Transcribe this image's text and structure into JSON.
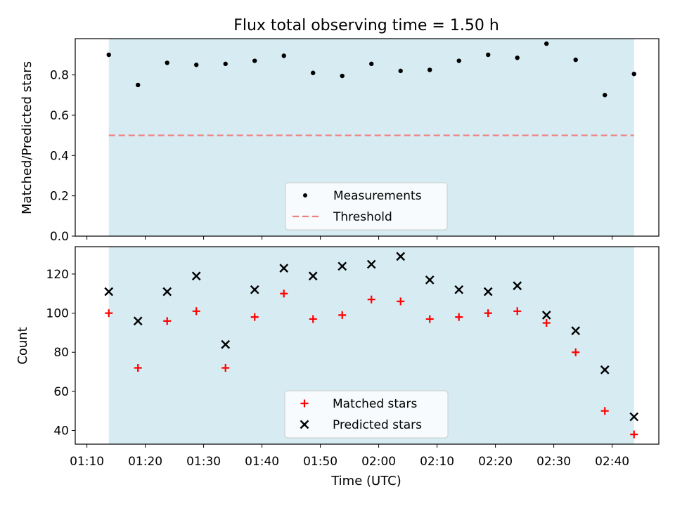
{
  "title": "Flux total observing time = 1.50 h",
  "xlabel": "Time (UTC)",
  "x_ticks": [
    "01:10",
    "01:20",
    "01:30",
    "01:40",
    "01:50",
    "02:00",
    "02:10",
    "02:20",
    "02:30",
    "02:40"
  ],
  "colors": {
    "shade": "#add8e6",
    "measurement": "#000000",
    "threshold": "#f08080",
    "matched": "#ff0000",
    "predicted": "#000000"
  },
  "chart_data": [
    {
      "type": "scatter",
      "ylabel": "Matched/Predicted stars",
      "xlim": [
        "01:08:00",
        "02:48:00"
      ],
      "ylim": [
        0,
        0.98
      ],
      "y_ticks": [
        "0.0",
        "0.2",
        "0.4",
        "0.6",
        "0.8"
      ],
      "shaded_span": [
        "01:13:45",
        "02:43:45"
      ],
      "threshold": 0.5,
      "x": [
        "01:13:45",
        "01:18:45",
        "01:23:45",
        "01:28:45",
        "01:33:45",
        "01:38:45",
        "01:43:45",
        "01:48:45",
        "01:53:45",
        "01:58:45",
        "02:03:45",
        "02:08:45",
        "02:13:45",
        "02:18:45",
        "02:23:45",
        "02:28:45",
        "02:33:45",
        "02:38:45",
        "02:43:45"
      ],
      "series": [
        {
          "name": "Measurements",
          "values": [
            0.9,
            0.75,
            0.86,
            0.85,
            0.855,
            0.87,
            0.895,
            0.81,
            0.795,
            0.855,
            0.82,
            0.825,
            0.87,
            0.9,
            0.885,
            0.955,
            0.875,
            0.7,
            0.805
          ]
        },
        {
          "name": "Threshold",
          "style": "dashed",
          "values": [
            0.5,
            0.5
          ]
        }
      ],
      "legend": "lower center"
    },
    {
      "type": "scatter",
      "ylabel": "Count",
      "xlim": [
        "01:08:00",
        "02:48:00"
      ],
      "ylim": [
        33,
        134
      ],
      "y_ticks": [
        "40",
        "60",
        "80",
        "100",
        "120"
      ],
      "shaded_span": [
        "01:13:45",
        "02:43:45"
      ],
      "x": [
        "01:13:45",
        "01:18:45",
        "01:23:45",
        "01:28:45",
        "01:33:45",
        "01:38:45",
        "01:43:45",
        "01:48:45",
        "01:53:45",
        "01:58:45",
        "02:03:45",
        "02:08:45",
        "02:13:45",
        "02:18:45",
        "02:23:45",
        "02:28:45",
        "02:33:45",
        "02:38:45",
        "02:43:45"
      ],
      "series": [
        {
          "name": "Matched stars",
          "marker": "+",
          "values": [
            100,
            72,
            96,
            101,
            72,
            98,
            110,
            97,
            99,
            107,
            106,
            97,
            98,
            100,
            101,
            95,
            80,
            50,
            38
          ]
        },
        {
          "name": "Predicted stars",
          "marker": "x",
          "values": [
            111,
            96,
            111,
            119,
            84,
            112,
            123,
            119,
            124,
            125,
            129,
            117,
            112,
            111,
            114,
            99,
            91,
            71,
            47
          ]
        }
      ],
      "legend": "lower center"
    }
  ]
}
